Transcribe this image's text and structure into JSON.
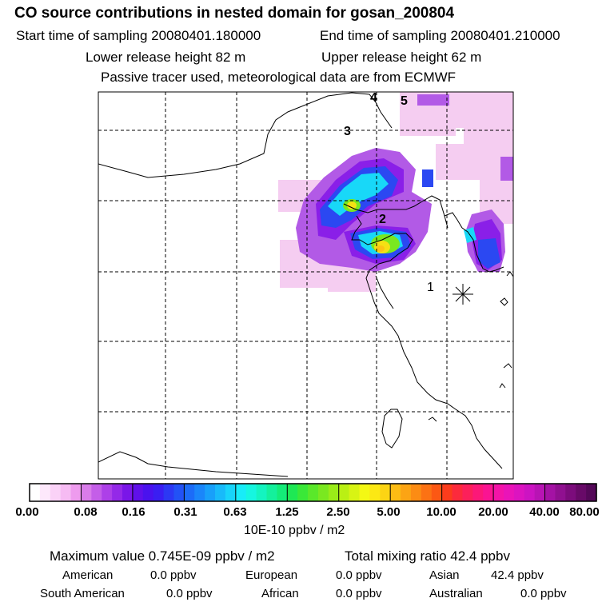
{
  "header": {
    "title": "CO  source contributions in nested domain for gosan_200804",
    "start_time": "Start time of sampling 20080401.180000",
    "end_time": "End time of sampling 20080401.210000",
    "lower_height": "Lower release height   82 m",
    "upper_height": "Upper release height   62 m",
    "note": "Passive tracer used, meteorological data are from ECMWF"
  },
  "map": {
    "point_labels": [
      "1",
      "2",
      "3",
      "4",
      "5"
    ],
    "receptor_marker": "asterisk"
  },
  "colorbar": {
    "ticks": [
      "0.00",
      "0.08",
      "0.16",
      "0.31",
      "0.63",
      "1.25",
      "2.50",
      "5.00",
      "10.00",
      "20.00",
      "40.00",
      "80.00"
    ],
    "units": "10E-10 ppbv / m2",
    "colors": [
      "#ffffff",
      "#fde8fb",
      "#fad2f7",
      "#f6bbf3",
      "#ee9bee",
      "#d97cea",
      "#c45ee8",
      "#ad40e8",
      "#9429e8",
      "#7a16e8",
      "#6010ea",
      "#4a12ee",
      "#3a1ef2",
      "#2c38f4",
      "#2252f6",
      "#1c6cf8",
      "#1a86fa",
      "#18a0fa",
      "#18bafa",
      "#18d4fa",
      "#18ecf8",
      "#16f6e0",
      "#14f4c0",
      "#14f09c",
      "#14ec78",
      "#1ee854",
      "#3ae838",
      "#5ae82a",
      "#7ae820",
      "#9aec18",
      "#baf014",
      "#d8f414",
      "#f4f814",
      "#fce814",
      "#fcd414",
      "#fcbc14",
      "#fca414",
      "#fc8c14",
      "#fc7214",
      "#fc5814",
      "#fc3c1c",
      "#fc2a3c",
      "#fc205a",
      "#fc1878",
      "#fa1492",
      "#f414a8",
      "#ea14b8",
      "#dc14c0",
      "#cc14c2",
      "#b814b4",
      "#a412a4",
      "#901090",
      "#7c0c7c",
      "#680a68",
      "#540858"
    ]
  },
  "stats": {
    "maximum": "Maximum value  0.745E-09 ppbv / m2",
    "total": "Total mixing ratio       42.4 ppbv",
    "regions": {
      "american_label": "American",
      "american_value": "0.0 ppbv",
      "european_label": "European",
      "european_value": "0.0 ppbv",
      "asian_label": "Asian",
      "asian_value": "42.4 ppbv",
      "south_american_label": "South American",
      "south_american_value": "0.0 ppbv",
      "african_label": "African",
      "african_value": "0.0 ppbv",
      "australian_label": "Australian",
      "australian_value": "0.0 ppbv"
    }
  }
}
